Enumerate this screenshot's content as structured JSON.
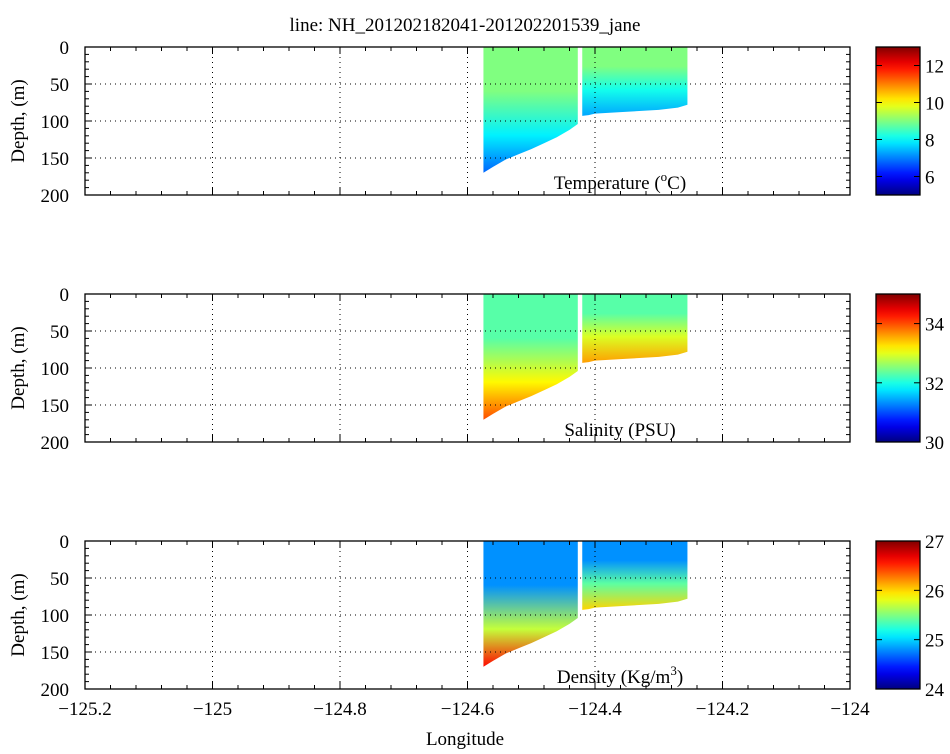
{
  "title": "line: NH_201202182041-201202201539_jane",
  "chart_data": [
    {
      "type": "heatmap",
      "variable": "Temperature",
      "label_main": "Temperature (",
      "label_sup": "o",
      "label_tail": "C)",
      "ylabel": "Depth, (m)",
      "xlim": [
        -125.2,
        -124.0
      ],
      "ylim": [
        0,
        200
      ],
      "xticks": [
        -125.2,
        -125.0,
        -124.8,
        -124.6,
        -124.4,
        -124.2,
        -124.0
      ],
      "xtick_labels": [
        "−125.2",
        "−125",
        "−124.8",
        "−124.6",
        "−124.4",
        "−124.2",
        "−124"
      ],
      "yticks": [
        0,
        50,
        100,
        150,
        200
      ],
      "ytick_labels": [
        "0",
        "50",
        "100",
        "150",
        "200"
      ],
      "grid": true,
      "colorbar": {
        "min": 5,
        "max": 13,
        "ticks": [
          6,
          8,
          10,
          12
        ],
        "tick_labels": [
          "6",
          "8",
          "10",
          "12"
        ]
      },
      "surface_value": 9.0,
      "deep_value": 7.3,
      "deep_offshore_value": 6.8,
      "show_xticklabels": false
    },
    {
      "type": "heatmap",
      "variable": "Salinity",
      "label_main": "Salinity (PSU)",
      "label_sup": "",
      "label_tail": "",
      "ylabel": "Depth, (m)",
      "xlim": [
        -125.2,
        -124.0
      ],
      "ylim": [
        0,
        200
      ],
      "xticks": [
        -125.2,
        -125.0,
        -124.8,
        -124.6,
        -124.4,
        -124.2,
        -124.0
      ],
      "xtick_labels": [
        "−125.2",
        "−125",
        "−124.8",
        "−124.6",
        "−124.4",
        "−124.2",
        "−124"
      ],
      "yticks": [
        0,
        50,
        100,
        150,
        200
      ],
      "ytick_labels": [
        "0",
        "50",
        "100",
        "150",
        "200"
      ],
      "grid": true,
      "colorbar": {
        "min": 30,
        "max": 35,
        "ticks": [
          30,
          32,
          34
        ],
        "tick_labels": [
          "30",
          "32",
          "34"
        ]
      },
      "surface_value": 32.3,
      "deep_value": 33.6,
      "deep_offshore_value": 34.0,
      "show_xticklabels": false
    },
    {
      "type": "heatmap",
      "variable": "Density",
      "label_main": "Density (Kg/m",
      "label_sup": "3",
      "label_tail": ")",
      "ylabel": "Depth, (m)",
      "xlabel": "Longitude",
      "xlim": [
        -125.2,
        -124.0
      ],
      "ylim": [
        0,
        200
      ],
      "xticks": [
        -125.2,
        -125.0,
        -124.8,
        -124.6,
        -124.4,
        -124.2,
        -124.0
      ],
      "xtick_labels": [
        "−125.2",
        "−125",
        "−124.8",
        "−124.6",
        "−124.4",
        "−124.2",
        "−124"
      ],
      "yticks": [
        0,
        50,
        100,
        150,
        200
      ],
      "ytick_labels": [
        "0",
        "50",
        "100",
        "150",
        "200"
      ],
      "grid": true,
      "colorbar": {
        "min": 24,
        "max": 27,
        "ticks": [
          24,
          25,
          26,
          27
        ],
        "tick_labels": [
          "24",
          "25",
          "26",
          "27"
        ]
      },
      "surface_value": 24.8,
      "deep_value": 26.0,
      "deep_offshore_value": 26.6,
      "show_xticklabels": true
    }
  ],
  "section": {
    "bottom_profile": [
      [
        -124.575,
        170
      ],
      [
        -124.56,
        162
      ],
      [
        -124.54,
        152
      ],
      [
        -124.52,
        145
      ],
      [
        -124.5,
        138
      ],
      [
        -124.48,
        130
      ],
      [
        -124.46,
        122
      ],
      [
        -124.44,
        112
      ],
      [
        -124.425,
        105
      ],
      [
        -124.42,
        95
      ],
      [
        -124.41,
        92
      ],
      [
        -124.4,
        90
      ],
      [
        -124.36,
        88
      ],
      [
        -124.3,
        85
      ],
      [
        -124.27,
        82
      ],
      [
        -124.255,
        78
      ]
    ],
    "gap": [
      -124.427,
      -124.42
    ]
  }
}
